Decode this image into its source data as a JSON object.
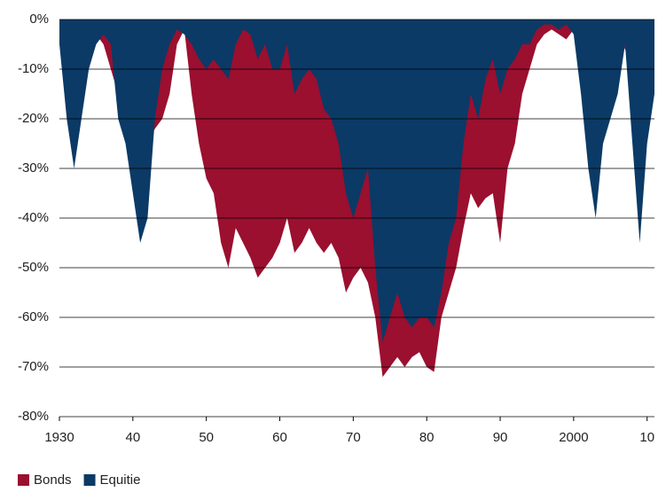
{
  "chart_data": {
    "type": "area",
    "x": [
      1930,
      1931,
      1932,
      1933,
      1934,
      1935,
      1936,
      1937,
      1938,
      1939,
      1940,
      1941,
      1942,
      1943,
      1944,
      1945,
      1946,
      1947,
      1948,
      1949,
      1950,
      1951,
      1952,
      1953,
      1954,
      1955,
      1956,
      1957,
      1958,
      1959,
      1960,
      1961,
      1962,
      1963,
      1964,
      1965,
      1966,
      1967,
      1968,
      1969,
      1970,
      1971,
      1972,
      1973,
      1974,
      1975,
      1976,
      1977,
      1978,
      1979,
      1980,
      1981,
      1982,
      1983,
      1984,
      1985,
      1986,
      1987,
      1988,
      1989,
      1990,
      1991,
      1992,
      1993,
      1994,
      1995,
      1996,
      1997,
      1998,
      1999,
      2000,
      2001,
      2002,
      2003,
      2004,
      2005,
      2006,
      2007,
      2008,
      2009,
      2010,
      2011
    ],
    "series": [
      {
        "name": "Bonds",
        "color": "#9b0f2f",
        "values": [
          -2,
          -3,
          -5,
          -4,
          -3,
          -3,
          -5,
          -10,
          -15,
          -22,
          -33,
          -28,
          -25,
          -22,
          -20,
          -15,
          -5,
          -2,
          -15,
          -25,
          -32,
          -35,
          -45,
          -50,
          -42,
          -45,
          -48,
          -52,
          -50,
          -48,
          -45,
          -40,
          -47,
          -45,
          -42,
          -45,
          -47,
          -45,
          -48,
          -55,
          -52,
          -50,
          -53,
          -60,
          -72,
          -70,
          -68,
          -70,
          -68,
          -67,
          -70,
          -71,
          -60,
          -55,
          -50,
          -42,
          -35,
          -38,
          -36,
          -35,
          -45,
          -30,
          -25,
          -15,
          -10,
          -5,
          -3,
          -2,
          -3,
          -4,
          -2,
          -3,
          -4,
          -3,
          -2,
          -5,
          -3,
          -6,
          -10,
          -12,
          -8,
          -4
        ]
      },
      {
        "name": "Equitie",
        "color": "#0b3a66",
        "values": [
          -5,
          -20,
          -30,
          -20,
          -10,
          -5,
          -3,
          -5,
          -20,
          -25,
          -35,
          -45,
          -40,
          -20,
          -10,
          -5,
          -2,
          -3,
          -5,
          -8,
          -10,
          -8,
          -10,
          -12,
          -5,
          -2,
          -3,
          -8,
          -5,
          -10,
          -10,
          -5,
          -15,
          -12,
          -10,
          -12,
          -18,
          -20,
          -25,
          -35,
          -40,
          -35,
          -30,
          -50,
          -65,
          -60,
          -55,
          -60,
          -62,
          -60,
          -60,
          -62,
          -55,
          -45,
          -40,
          -25,
          -15,
          -20,
          -12,
          -8,
          -15,
          -10,
          -8,
          -5,
          -5,
          -2,
          -1,
          -1,
          -2,
          -1,
          -3,
          -15,
          -30,
          -40,
          -25,
          -20,
          -15,
          -5,
          -25,
          -45,
          -25,
          -15
        ]
      }
    ],
    "xlim": [
      1930,
      2011
    ],
    "xticks": [
      1930,
      {
        "value": 1940,
        "label": "40"
      },
      {
        "value": 1950,
        "label": "50"
      },
      {
        "value": 1960,
        "label": "60"
      },
      {
        "value": 1970,
        "label": "70"
      },
      {
        "value": 1980,
        "label": "80"
      },
      {
        "value": 1990,
        "label": "90"
      },
      2000,
      {
        "value": 2010,
        "label": "10"
      }
    ],
    "ylim": [
      -80,
      0
    ],
    "yticks": [
      {
        "value": 0,
        "label": "0%"
      },
      {
        "value": -10,
        "label": "-10%"
      },
      {
        "value": -20,
        "label": "-20%"
      },
      {
        "value": -30,
        "label": "-30%"
      },
      {
        "value": -40,
        "label": "-40%"
      },
      {
        "value": -50,
        "label": "-50%"
      },
      {
        "value": -60,
        "label": "-60%"
      },
      {
        "value": -70,
        "label": "-70%"
      },
      {
        "value": -80,
        "label": "-80%"
      }
    ],
    "grid": true
  }
}
